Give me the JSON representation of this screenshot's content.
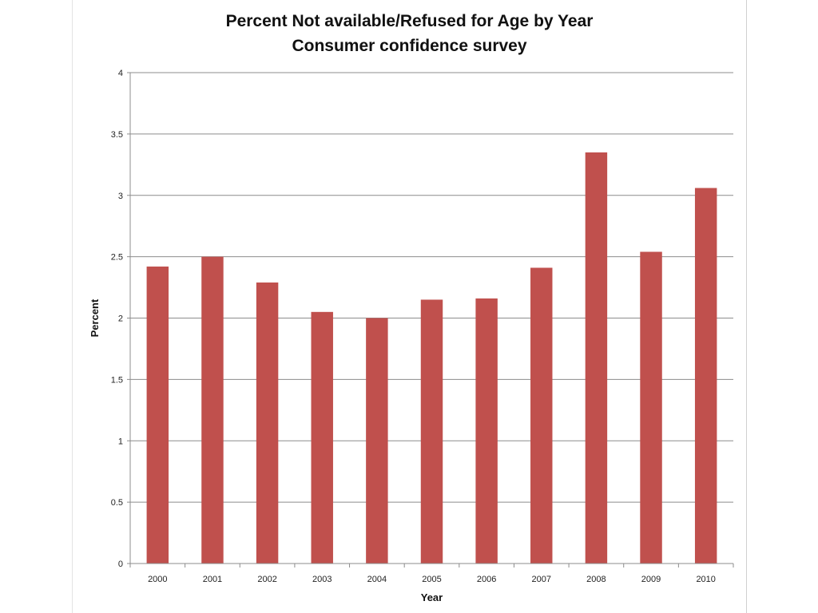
{
  "chart": {
    "title_line1": "Percent Not available/Refused for Age by Year",
    "title_line2": "Consumer confidence survey"
  },
  "chart_data": {
    "type": "bar",
    "title": "Percent Not available/Refused for Age by Year\nConsumer confidence survey",
    "xlabel": "Year",
    "ylabel": "Percent",
    "categories": [
      "2000",
      "2001",
      "2002",
      "2003",
      "2004",
      "2005",
      "2006",
      "2007",
      "2008",
      "2009",
      "2010"
    ],
    "values": [
      2.42,
      2.5,
      2.29,
      2.05,
      2.0,
      2.15,
      2.16,
      2.41,
      3.35,
      2.54,
      3.06
    ],
    "ylim": [
      0,
      4
    ],
    "yticks": [
      0,
      0.5,
      1,
      1.5,
      2,
      2.5,
      3,
      3.5,
      4
    ],
    "ytick_labels": [
      "0",
      "0.5",
      "1",
      "1.5",
      "2",
      "2.5",
      "3",
      "3.5",
      "4"
    ],
    "grid": true,
    "legend": "none",
    "bar_color": "#c0504d",
    "grid_color": "#8c8c8c"
  }
}
